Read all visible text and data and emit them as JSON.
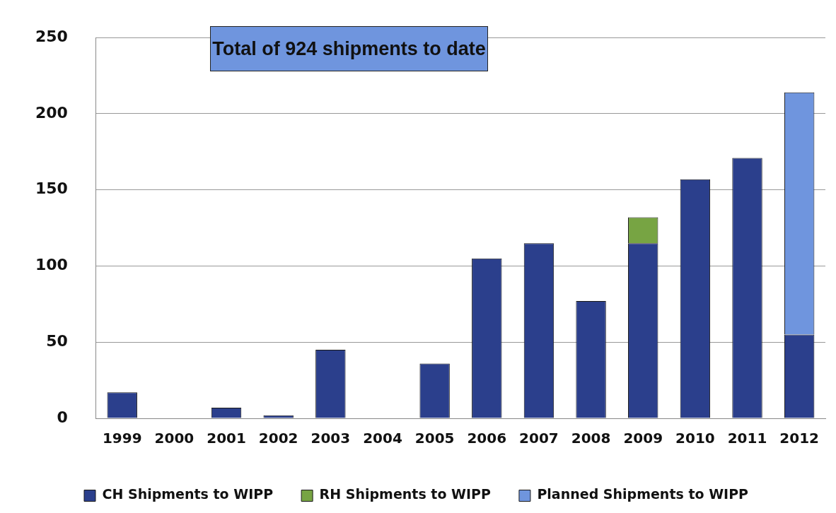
{
  "chart_data": {
    "type": "bar",
    "stacked": true,
    "categories": [
      "1999",
      "2000",
      "2001",
      "2002",
      "2003",
      "2004",
      "2005",
      "2006",
      "2007",
      "2008",
      "2009",
      "2010",
      "2011",
      "2012"
    ],
    "series": [
      {
        "name": "CH Shipments to WIPP",
        "color": "#2b3f8c",
        "values": [
          17,
          0,
          7,
          2,
          45,
          0,
          36,
          105,
          115,
          77,
          115,
          157,
          171,
          55
        ]
      },
      {
        "name": "RH Shipments to WIPP",
        "color": "#77a443",
        "values": [
          0,
          0,
          0,
          0,
          0,
          0,
          0,
          0,
          0,
          0,
          17,
          0,
          0,
          0
        ]
      },
      {
        "name": "Planned Shipments to WIPP",
        "color": "#6f95de",
        "values": [
          0,
          0,
          0,
          0,
          0,
          0,
          0,
          0,
          0,
          0,
          0,
          0,
          0,
          159
        ]
      }
    ],
    "ylim": [
      0,
      250
    ],
    "yticks": [
      0,
      50,
      100,
      150,
      200,
      250
    ],
    "grid": "y",
    "legend": "bottom",
    "annotations": [
      "Total of 924 shipments to date"
    ]
  }
}
